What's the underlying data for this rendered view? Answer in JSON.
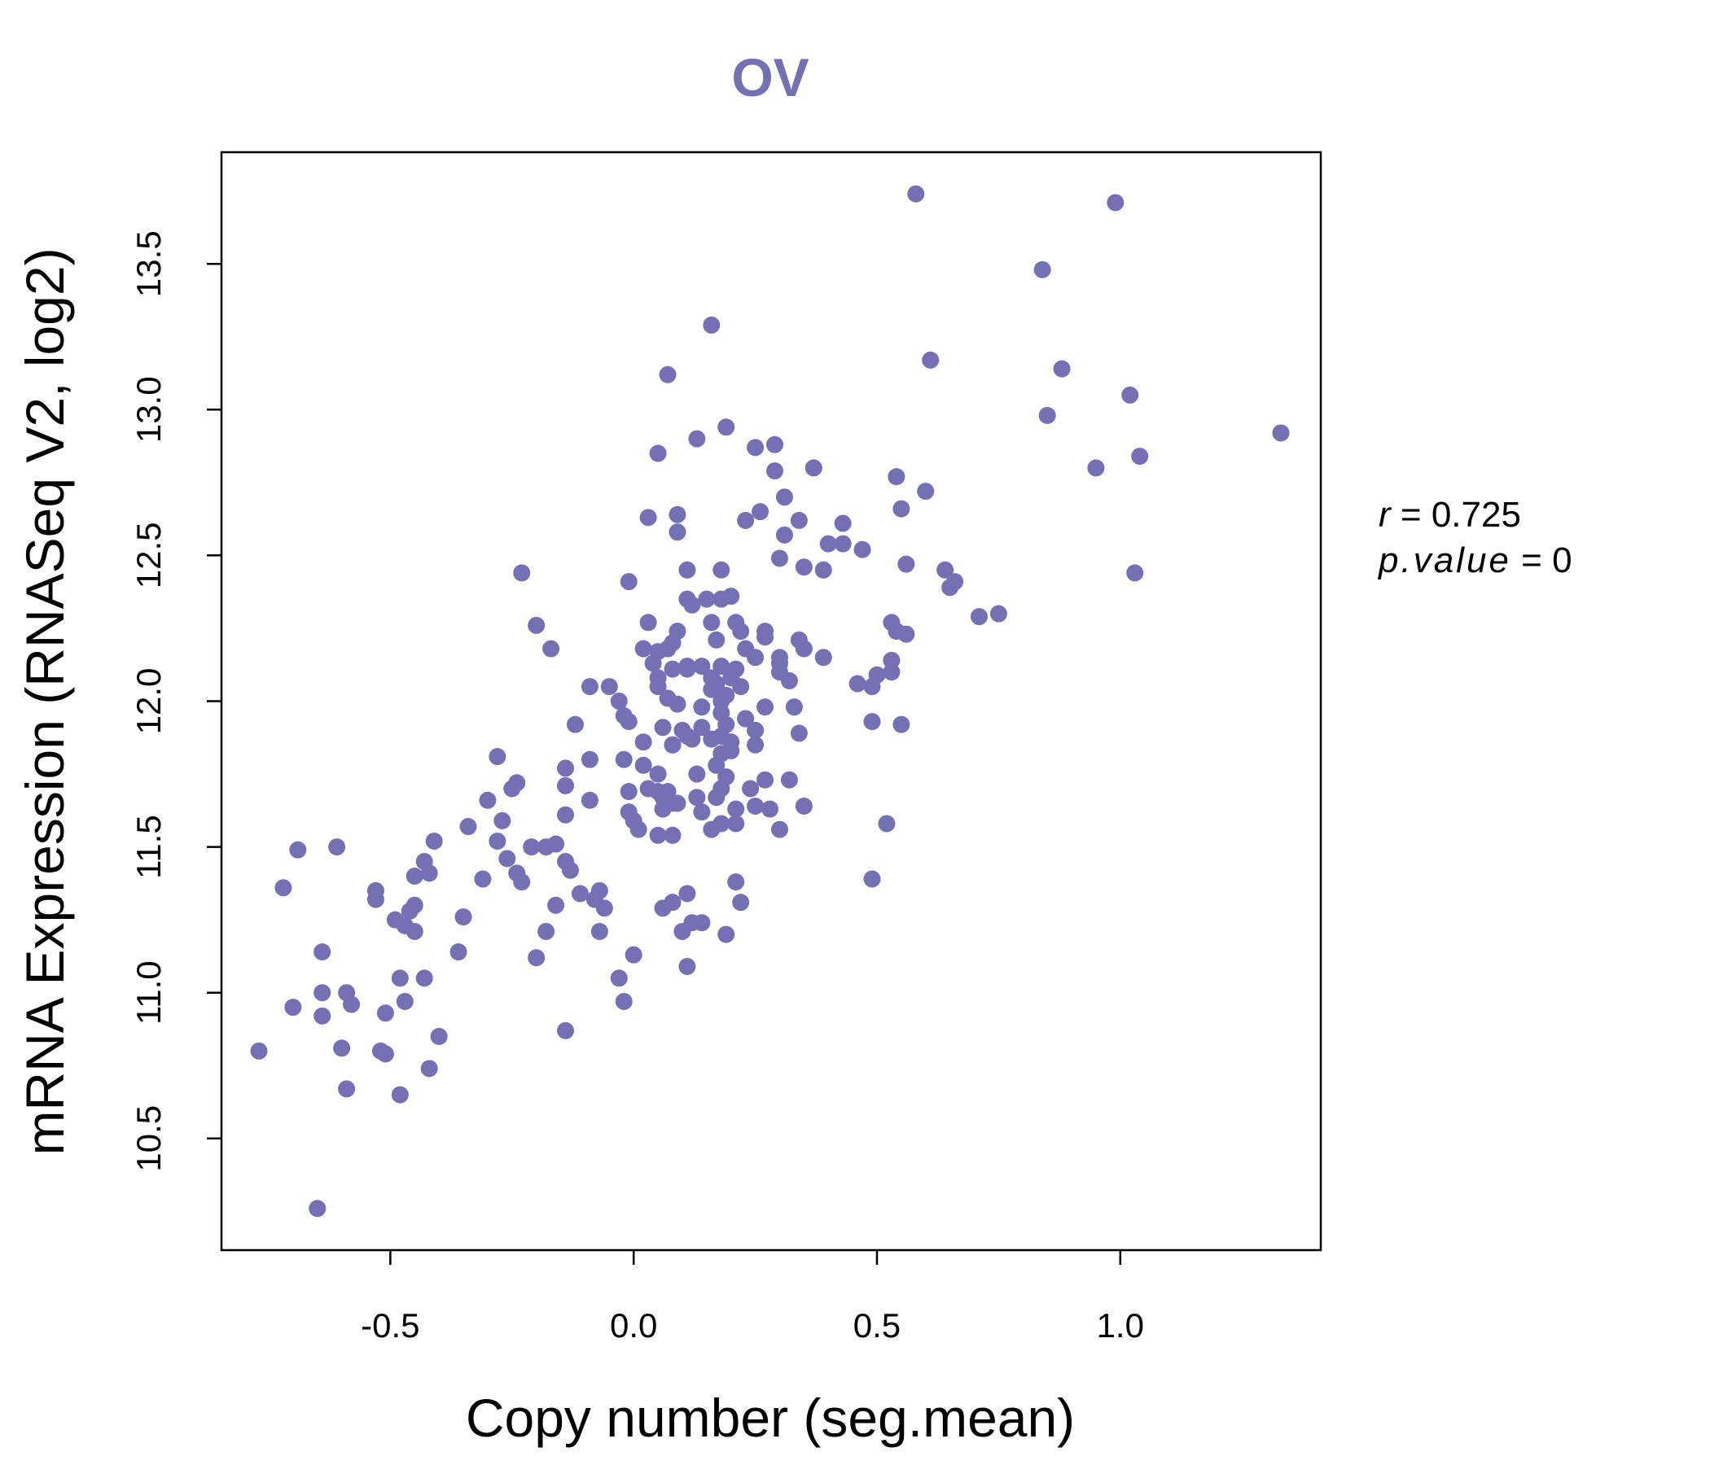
{
  "chart_data": {
    "type": "scatter",
    "title": "OV",
    "xlabel": "Copy number (seg.mean)",
    "ylabel": "mRNA Expression (RNASeq V2, log2)",
    "xlim": [
      -0.847,
      1.412
    ],
    "ylim": [
      10.117,
      13.883
    ],
    "xticks": [
      -0.5,
      0.0,
      0.5,
      1.0
    ],
    "xtick_labels": [
      "-0.5",
      "0.0",
      "0.5",
      "1.0"
    ],
    "yticks": [
      10.5,
      11.0,
      11.5,
      12.0,
      12.5,
      13.0,
      13.5
    ],
    "ytick_labels": [
      "10.5",
      "11.0",
      "11.5",
      "12.0",
      "12.5",
      "13.0",
      "13.5"
    ],
    "grid": false,
    "color": "#7570b3",
    "annotations": {
      "r_label": "r",
      "r_value": "0.725",
      "p_label": "p.value",
      "p_value": "0",
      "eq": "="
    },
    "points": [
      [
        0.58,
        13.74
      ],
      [
        0.99,
        13.71
      ],
      [
        0.84,
        13.48
      ],
      [
        0.16,
        13.29
      ],
      [
        0.61,
        13.17
      ],
      [
        0.07,
        13.12
      ],
      [
        0.88,
        13.14
      ],
      [
        1.02,
        13.05
      ],
      [
        0.85,
        12.98
      ],
      [
        1.33,
        12.92
      ],
      [
        0.19,
        12.94
      ],
      [
        0.13,
        12.9
      ],
      [
        0.05,
        12.85
      ],
      [
        0.25,
        12.87
      ],
      [
        0.29,
        12.88
      ],
      [
        1.04,
        12.84
      ],
      [
        0.95,
        12.8
      ],
      [
        0.37,
        12.8
      ],
      [
        0.29,
        12.79
      ],
      [
        0.54,
        12.77
      ],
      [
        0.6,
        12.72
      ],
      [
        0.31,
        12.7
      ],
      [
        0.09,
        12.64
      ],
      [
        0.03,
        12.63
      ],
      [
        0.26,
        12.65
      ],
      [
        0.23,
        12.62
      ],
      [
        0.34,
        12.62
      ],
      [
        0.43,
        12.61
      ],
      [
        0.55,
        12.66
      ],
      [
        0.09,
        12.58
      ],
      [
        0.31,
        12.57
      ],
      [
        0.4,
        12.54
      ],
      [
        0.43,
        12.54
      ],
      [
        0.47,
        12.52
      ],
      [
        0.3,
        12.49
      ],
      [
        0.35,
        12.46
      ],
      [
        0.39,
        12.45
      ],
      [
        0.56,
        12.47
      ],
      [
        0.64,
        12.45
      ],
      [
        0.66,
        12.41
      ],
      [
        0.65,
        12.39
      ],
      [
        -0.23,
        12.44
      ],
      [
        -0.01,
        12.41
      ],
      [
        0.11,
        12.45
      ],
      [
        0.18,
        12.45
      ],
      [
        1.03,
        12.44
      ],
      [
        0.11,
        12.35
      ],
      [
        0.15,
        12.35
      ],
      [
        0.12,
        12.33
      ],
      [
        0.18,
        12.35
      ],
      [
        0.2,
        12.36
      ],
      [
        0.71,
        12.29
      ],
      [
        0.75,
        12.3
      ],
      [
        -0.2,
        12.26
      ],
      [
        0.03,
        12.27
      ],
      [
        0.09,
        12.24
      ],
      [
        0.16,
        12.27
      ],
      [
        0.21,
        12.27
      ],
      [
        0.22,
        12.24
      ],
      [
        0.27,
        12.24
      ],
      [
        0.27,
        12.22
      ],
      [
        0.34,
        12.21
      ],
      [
        0.53,
        12.27
      ],
      [
        0.54,
        12.24
      ],
      [
        0.56,
        12.23
      ],
      [
        -0.17,
        12.18
      ],
      [
        0.02,
        12.18
      ],
      [
        0.05,
        12.17
      ],
      [
        0.07,
        12.18
      ],
      [
        0.08,
        12.2
      ],
      [
        0.17,
        12.21
      ],
      [
        0.23,
        12.18
      ],
      [
        0.35,
        12.18
      ],
      [
        0.39,
        12.15
      ],
      [
        0.3,
        12.15
      ],
      [
        0.3,
        12.13
      ],
      [
        0.25,
        12.15
      ],
      [
        0.04,
        12.13
      ],
      [
        0.11,
        12.12
      ],
      [
        0.14,
        12.12
      ],
      [
        0.18,
        12.12
      ],
      [
        0.05,
        12.08
      ],
      [
        0.08,
        12.11
      ],
      [
        0.11,
        12.11
      ],
      [
        0.21,
        12.11
      ],
      [
        0.3,
        12.1
      ],
      [
        0.53,
        12.14
      ],
      [
        0.5,
        12.09
      ],
      [
        0.53,
        12.1
      ],
      [
        0.32,
        12.07
      ],
      [
        0.46,
        12.06
      ],
      [
        0.49,
        12.05
      ],
      [
        -0.09,
        12.05
      ],
      [
        -0.05,
        12.05
      ],
      [
        0.05,
        12.05
      ],
      [
        0.16,
        12.08
      ],
      [
        0.17,
        12.06
      ],
      [
        0.2,
        12.08
      ],
      [
        0.22,
        12.05
      ],
      [
        0.16,
        12.04
      ],
      [
        0.19,
        12.02
      ],
      [
        0.07,
        12.01
      ],
      [
        0.18,
        12.0
      ],
      [
        -0.03,
        12.0
      ],
      [
        0.09,
        11.99
      ],
      [
        0.14,
        11.98
      ],
      [
        0.27,
        11.98
      ],
      [
        0.33,
        11.98
      ],
      [
        0.18,
        11.96
      ],
      [
        0.23,
        11.94
      ],
      [
        0.23,
        11.94
      ],
      [
        -0.02,
        11.95
      ],
      [
        0.06,
        11.91
      ],
      [
        0.1,
        11.9
      ],
      [
        0.14,
        11.91
      ],
      [
        0.19,
        11.92
      ],
      [
        0.25,
        11.9
      ],
      [
        0.34,
        11.89
      ],
      [
        0.49,
        11.93
      ],
      [
        0.55,
        11.92
      ],
      [
        -0.12,
        11.92
      ],
      [
        -0.01,
        11.93
      ],
      [
        0.11,
        11.88
      ],
      [
        0.08,
        11.85
      ],
      [
        0.12,
        11.87
      ],
      [
        0.16,
        11.87
      ],
      [
        0.18,
        11.88
      ],
      [
        0.2,
        11.86
      ],
      [
        0.25,
        11.85
      ],
      [
        0.2,
        11.83
      ],
      [
        0.18,
        11.82
      ],
      [
        0.02,
        11.86
      ],
      [
        0.08,
        11.85
      ],
      [
        -0.28,
        11.81
      ],
      [
        -0.02,
        11.8
      ],
      [
        -0.09,
        11.8
      ],
      [
        -0.14,
        11.77
      ],
      [
        0.02,
        11.78
      ],
      [
        0.17,
        11.78
      ],
      [
        0.05,
        11.75
      ],
      [
        0.13,
        11.75
      ],
      [
        0.19,
        11.74
      ],
      [
        -0.14,
        11.71
      ],
      [
        -0.3,
        11.66
      ],
      [
        -0.25,
        11.7
      ],
      [
        -0.24,
        11.72
      ],
      [
        -0.09,
        11.66
      ],
      [
        0.03,
        11.7
      ],
      [
        0.05,
        11.69
      ],
      [
        0.06,
        11.67
      ],
      [
        0.07,
        11.69
      ],
      [
        0.09,
        11.65
      ],
      [
        0.13,
        11.67
      ],
      [
        0.17,
        11.67
      ],
      [
        0.18,
        11.7
      ],
      [
        0.24,
        11.7
      ],
      [
        0.27,
        11.73
      ],
      [
        0.32,
        11.73
      ],
      [
        -0.01,
        11.69
      ],
      [
        0.07,
        11.65
      ],
      [
        0.08,
        11.65
      ],
      [
        0.14,
        11.62
      ],
      [
        0.06,
        11.63
      ],
      [
        0.21,
        11.63
      ],
      [
        0.25,
        11.64
      ],
      [
        0.28,
        11.63
      ],
      [
        0.35,
        11.64
      ],
      [
        -0.14,
        11.61
      ],
      [
        -0.34,
        11.57
      ],
      [
        -0.27,
        11.59
      ],
      [
        -0.01,
        11.62
      ],
      [
        0.0,
        11.59
      ],
      [
        0.01,
        11.56
      ],
      [
        0.05,
        11.54
      ],
      [
        0.08,
        11.54
      ],
      [
        0.16,
        11.56
      ],
      [
        0.18,
        11.58
      ],
      [
        0.21,
        11.58
      ],
      [
        0.3,
        11.56
      ],
      [
        0.52,
        11.58
      ],
      [
        -0.69,
        11.49
      ],
      [
        -0.61,
        11.5
      ],
      [
        -0.41,
        11.52
      ],
      [
        -0.28,
        11.52
      ],
      [
        -0.21,
        11.5
      ],
      [
        -0.18,
        11.5
      ],
      [
        -0.16,
        11.51
      ],
      [
        -0.43,
        11.45
      ],
      [
        -0.14,
        11.45
      ],
      [
        -0.13,
        11.42
      ],
      [
        -0.26,
        11.46
      ],
      [
        -0.24,
        11.41
      ],
      [
        -0.23,
        11.38
      ],
      [
        -0.31,
        11.39
      ],
      [
        -0.42,
        11.41
      ],
      [
        -0.45,
        11.4
      ],
      [
        -0.72,
        11.36
      ],
      [
        -0.53,
        11.35
      ],
      [
        -0.53,
        11.32
      ],
      [
        0.49,
        11.39
      ],
      [
        0.21,
        11.38
      ],
      [
        0.11,
        11.34
      ],
      [
        0.08,
        11.31
      ],
      [
        0.22,
        11.31
      ],
      [
        -0.11,
        11.34
      ],
      [
        -0.07,
        11.35
      ],
      [
        -0.08,
        11.32
      ],
      [
        -0.06,
        11.29
      ],
      [
        -0.16,
        11.3
      ],
      [
        0.06,
        11.29
      ],
      [
        -0.45,
        11.3
      ],
      [
        -0.46,
        11.28
      ],
      [
        -0.49,
        11.25
      ],
      [
        -0.47,
        11.23
      ],
      [
        -0.45,
        11.21
      ],
      [
        -0.35,
        11.26
      ],
      [
        0.12,
        11.24
      ],
      [
        0.14,
        11.24
      ],
      [
        -0.18,
        11.21
      ],
      [
        -0.07,
        11.21
      ],
      [
        0.1,
        11.21
      ],
      [
        0.19,
        11.2
      ],
      [
        -0.64,
        11.14
      ],
      [
        -0.36,
        11.14
      ],
      [
        -0.2,
        11.12
      ],
      [
        0.0,
        11.13
      ],
      [
        0.11,
        11.09
      ],
      [
        -0.48,
        11.05
      ],
      [
        -0.43,
        11.05
      ],
      [
        -0.03,
        11.05
      ],
      [
        -0.64,
        11.0
      ],
      [
        -0.59,
        11.0
      ],
      [
        -0.7,
        10.95
      ],
      [
        -0.58,
        10.96
      ],
      [
        -0.47,
        10.97
      ],
      [
        -0.51,
        10.93
      ],
      [
        -0.64,
        10.92
      ],
      [
        -0.02,
        10.97
      ],
      [
        -0.14,
        10.87
      ],
      [
        -0.4,
        10.85
      ],
      [
        -0.6,
        10.81
      ],
      [
        -0.77,
        10.8
      ],
      [
        -0.52,
        10.8
      ],
      [
        -0.51,
        10.79
      ],
      [
        -0.42,
        10.74
      ],
      [
        -0.59,
        10.67
      ],
      [
        -0.48,
        10.65
      ],
      [
        -0.65,
        10.26
      ]
    ]
  }
}
